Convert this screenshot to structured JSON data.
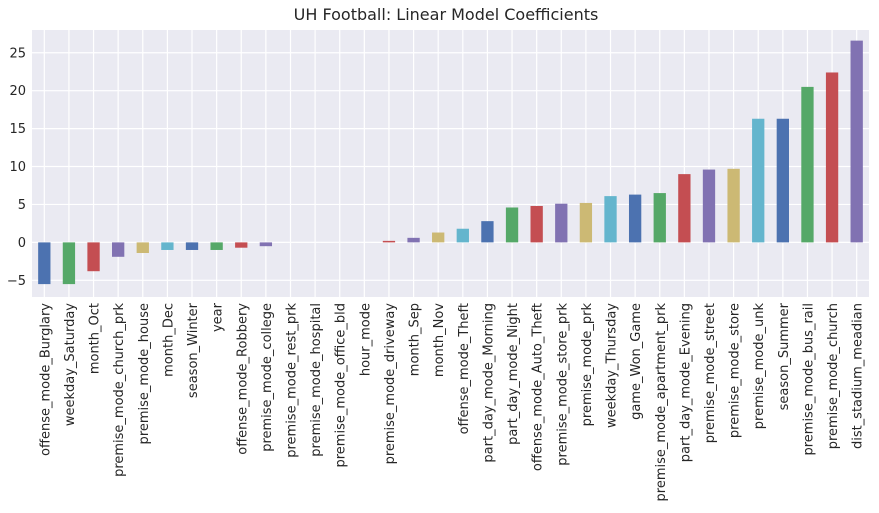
{
  "chart_data": {
    "type": "bar",
    "title": "UH Football: Linear Model Coefficients",
    "xlabel": "",
    "ylabel": "",
    "ylim": [
      -7.2,
      28
    ],
    "yticks": [
      -5,
      0,
      5,
      10,
      15,
      20,
      25
    ],
    "grid": true,
    "legend": "none",
    "background": "#EAEAF2",
    "palette": [
      "#4C72B0",
      "#55A868",
      "#C44E52",
      "#8172B2",
      "#CCB974",
      "#64B5CD"
    ],
    "categories": [
      "offense_mode_Burglary",
      "weekday_Saturday",
      "month_Oct",
      "premise_mode_church_prk",
      "premise_mode_house",
      "month_Dec",
      "season_Winter",
      "year",
      "offense_mode_Robbery",
      "premise_mode_college",
      "premise_mode_rest_prk",
      "premise_mode_hospital",
      "premise_mode_office_bld",
      "hour_mode",
      "premise_mode_driveway",
      "month_Sep",
      "month_Nov",
      "offense_mode_Theft",
      "part_day_mode_Morning",
      "part_day_mode_Night",
      "offense_mode_Auto_Theft",
      "premise_mode_store_prk",
      "premise_mode_prk",
      "weekday_Thursday",
      "game_Won_Game",
      "premise_mode_apartment_prk",
      "part_day_mode_Evening",
      "premise_mode_street",
      "premise_mode_store",
      "premise_mode_unk",
      "season_Summer",
      "premise_mode_bus_rail",
      "premise_mode_church",
      "dist_stadium_meadian"
    ],
    "values": [
      -5.5,
      -5.5,
      -3.8,
      -1.9,
      -1.4,
      -1.0,
      -1.0,
      -1.0,
      -0.7,
      -0.5,
      0.0,
      0.0,
      0.0,
      0.0,
      0.2,
      0.6,
      1.3,
      1.8,
      2.8,
      4.6,
      4.8,
      5.1,
      5.2,
      6.1,
      6.3,
      6.5,
      9.0,
      9.6,
      9.7,
      16.3,
      16.3,
      20.5,
      22.4,
      26.6
    ]
  }
}
